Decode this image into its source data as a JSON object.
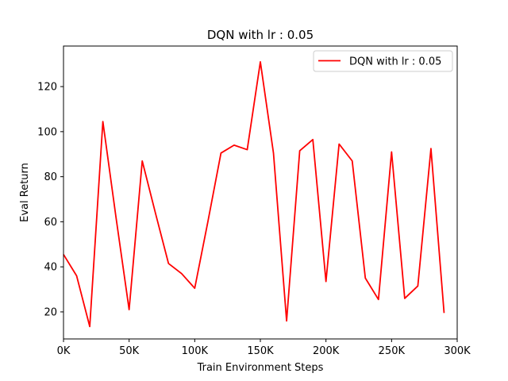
{
  "chart_data": {
    "type": "line",
    "title": "DQN with lr : 0.05",
    "xlabel": "Train Environment Steps",
    "ylabel": "Eval Return",
    "xlim": [
      0,
      300000
    ],
    "ylim": [
      8,
      138
    ],
    "xticks": [
      0,
      50000,
      100000,
      150000,
      200000,
      250000,
      300000
    ],
    "xtick_labels": [
      "0K",
      "50K",
      "100K",
      "150K",
      "200K",
      "250K",
      "300K"
    ],
    "yticks": [
      20,
      40,
      60,
      80,
      100,
      120
    ],
    "ytick_labels": [
      "20",
      "40",
      "60",
      "80",
      "100",
      "120"
    ],
    "grid": false,
    "legend_position": "top-right",
    "series": [
      {
        "name": "DQN with lr : 0.05",
        "color": "#ff0000",
        "x": [
          0,
          10000,
          20000,
          30000,
          40000,
          50000,
          60000,
          70000,
          80000,
          90000,
          100000,
          110000,
          120000,
          130000,
          140000,
          150000,
          160000,
          170000,
          180000,
          190000,
          200000,
          210000,
          220000,
          230000,
          240000,
          250000,
          260000,
          270000,
          280000,
          290000
        ],
        "y": [
          45.5,
          36,
          13.5,
          104.5,
          62,
          21,
          87,
          64,
          41.5,
          37,
          30.5,
          60,
          90.5,
          94,
          92,
          131,
          90.5,
          16,
          91.5,
          96.5,
          33.5,
          94.5,
          87,
          35,
          25.5,
          91,
          26,
          31.5,
          92.5,
          19.5
        ]
      }
    ]
  }
}
